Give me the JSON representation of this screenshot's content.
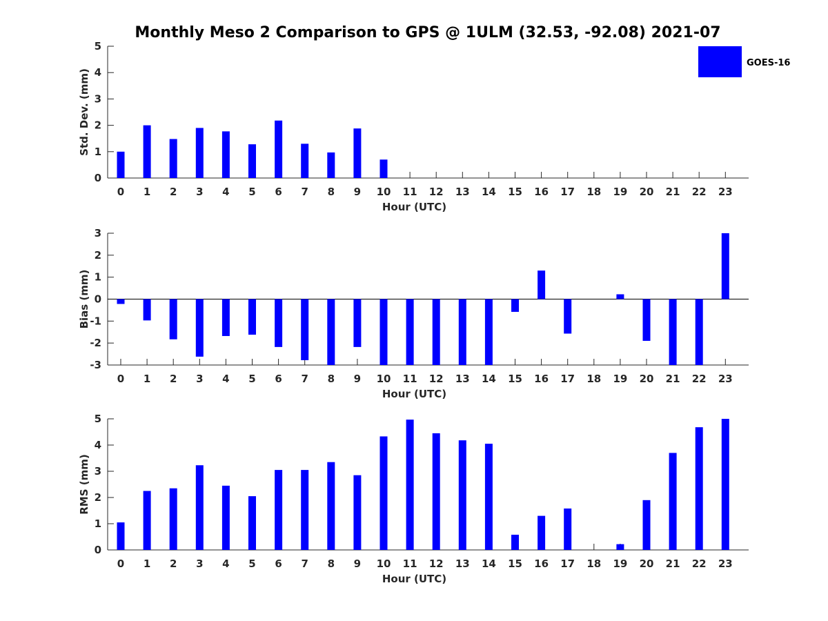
{
  "title": "Monthly Meso 2 Comparison to GPS @ 1ULM (32.53, -92.08) 2021-07",
  "legend": {
    "label": "GOES-16",
    "color": "#0000ff",
    "placement": "top-right"
  },
  "colors": {
    "bar": "#0000ff",
    "axis": "#262626"
  },
  "chart_data": [
    {
      "type": "bar",
      "xlabel": "Hour (UTC)",
      "ylabel": "Std. Dev. (mm)",
      "ylim": [
        0,
        5
      ],
      "yticks": [
        0,
        1,
        2,
        3,
        4,
        5
      ],
      "categories": [
        "0",
        "1",
        "2",
        "3",
        "4",
        "5",
        "6",
        "7",
        "8",
        "9",
        "10",
        "11",
        "12",
        "13",
        "14",
        "15",
        "16",
        "17",
        "18",
        "19",
        "20",
        "21",
        "22",
        "23"
      ],
      "series": [
        {
          "name": "GOES-16",
          "values": [
            1.0,
            2.0,
            1.48,
            1.9,
            1.77,
            1.28,
            2.18,
            1.3,
            0.97,
            1.88,
            0.7,
            null,
            null,
            null,
            null,
            null,
            null,
            null,
            null,
            null,
            null,
            null,
            null,
            null
          ]
        }
      ]
    },
    {
      "type": "bar",
      "xlabel": "Hour (UTC)",
      "ylabel": "Bias (mm)",
      "ylim": [
        -3,
        3
      ],
      "yticks": [
        -3,
        -2,
        -1,
        0,
        1,
        2,
        3
      ],
      "categories": [
        "0",
        "1",
        "2",
        "3",
        "4",
        "5",
        "6",
        "7",
        "8",
        "9",
        "10",
        "11",
        "12",
        "13",
        "14",
        "15",
        "16",
        "17",
        "18",
        "19",
        "20",
        "21",
        "22",
        "23"
      ],
      "series": [
        {
          "name": "GOES-16",
          "values": [
            -0.22,
            -0.97,
            -1.83,
            -2.62,
            -1.68,
            -1.62,
            -2.18,
            -2.78,
            -3.0,
            -2.18,
            -3.0,
            -3.0,
            -3.0,
            -3.0,
            -3.0,
            -0.58,
            1.3,
            -1.57,
            null,
            0.22,
            -1.9,
            -3.0,
            -3.0,
            3.0
          ]
        }
      ]
    },
    {
      "type": "bar",
      "xlabel": "Hour (UTC)",
      "ylabel": "RMS (mm)",
      "ylim": [
        0,
        5
      ],
      "yticks": [
        0,
        1,
        2,
        3,
        4,
        5
      ],
      "categories": [
        "0",
        "1",
        "2",
        "3",
        "4",
        "5",
        "6",
        "7",
        "8",
        "9",
        "10",
        "11",
        "12",
        "13",
        "14",
        "15",
        "16",
        "17",
        "18",
        "19",
        "20",
        "21",
        "22",
        "23"
      ],
      "series": [
        {
          "name": "GOES-16",
          "values": [
            1.05,
            2.25,
            2.35,
            3.23,
            2.45,
            2.05,
            3.05,
            3.05,
            3.35,
            2.85,
            4.33,
            4.97,
            4.45,
            4.18,
            4.05,
            0.58,
            1.3,
            1.58,
            null,
            0.22,
            1.9,
            3.7,
            4.68,
            5.0
          ]
        }
      ]
    }
  ]
}
